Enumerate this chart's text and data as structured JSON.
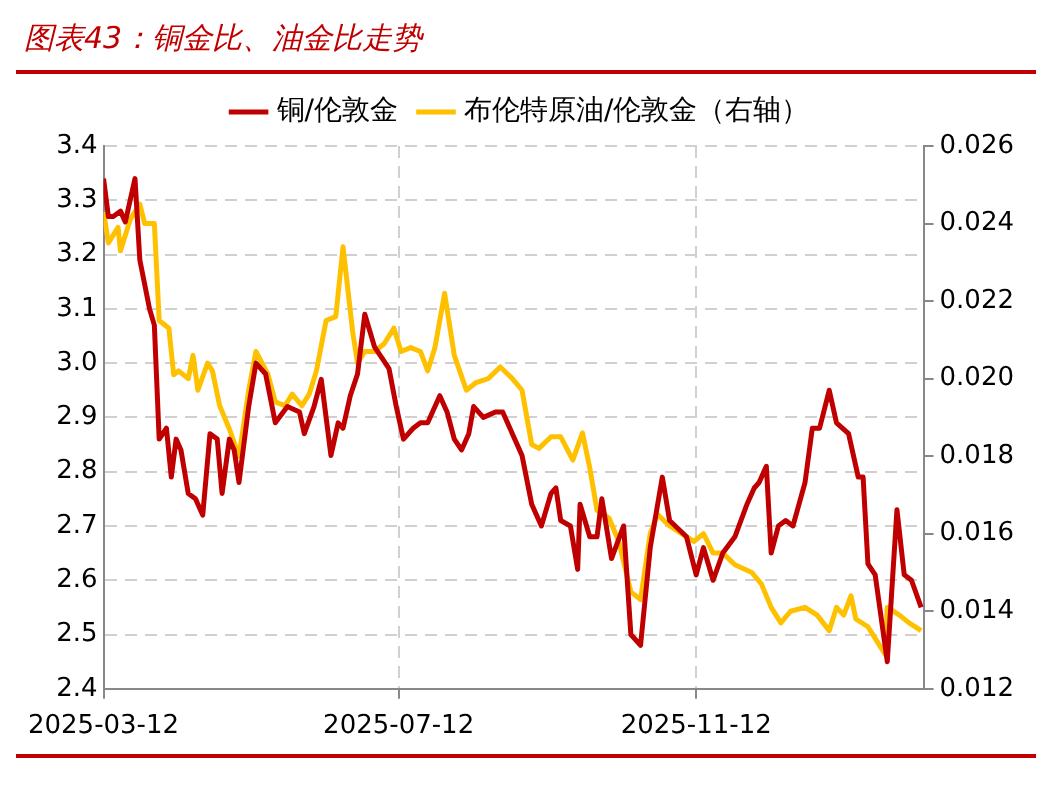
{
  "chart_data": {
    "type": "line",
    "title": "图表43：铜金比、油金比走势",
    "xlim": [
      "2025-03-12",
      "2026-02-14"
    ],
    "xticks": [
      "2025-03-12",
      "2025-07-12",
      "2025-11-12"
    ],
    "ylim": [
      2.4,
      3.4
    ],
    "yticks": [
      2.4,
      2.5,
      2.6,
      2.7,
      2.8,
      2.9,
      {
        "value": 3,
        "label": "3.0"
      },
      3.1,
      3.2,
      3.3,
      3.4
    ],
    "y2lim": [
      0.012,
      0.026
    ],
    "y2ticks": [
      {
        "value": 0.012,
        "label": "0.012"
      },
      {
        "value": 0.014,
        "label": "0.014"
      },
      {
        "value": 0.016,
        "label": "0.016"
      },
      {
        "value": 0.018,
        "label": "0.018"
      },
      {
        "value": 0.02,
        "label": "0.020"
      },
      {
        "value": 0.022,
        "label": "0.022"
      },
      {
        "value": 0.024,
        "label": "0.024"
      },
      {
        "value": 0.026,
        "label": "0.026"
      }
    ],
    "grid": true,
    "legend": "top",
    "line_style": "solid",
    "marker": "none",
    "series": [
      {
        "name": "铜/伦敦金",
        "color": "#c00000",
        "x": [
          "2025-03-12",
          "2025-03-14",
          "2025-03-16",
          "2025-03-19",
          "2025-03-21",
          "2025-03-25",
          "2025-03-27",
          "2025-03-31",
          "2025-04-02",
          "2025-04-04",
          "2025-04-07",
          "2025-04-09",
          "2025-04-11",
          "2025-04-13",
          "2025-04-16",
          "2025-04-19",
          "2025-04-22",
          "2025-04-25",
          "2025-04-28",
          "2025-04-30",
          "2025-05-03",
          "2025-05-05",
          "2025-05-07",
          "2025-05-11",
          "2025-05-14",
          "2025-05-18",
          "2025-05-22",
          "2025-05-27",
          "2025-06-01",
          "2025-06-03",
          "2025-06-07",
          "2025-06-10",
          "2025-06-14",
          "2025-06-17",
          "2025-06-19",
          "2025-06-22",
          "2025-06-25",
          "2025-06-28",
          "2025-07-02",
          "2025-07-05",
          "2025-07-08",
          "2025-07-11",
          "2025-07-14",
          "2025-07-18",
          "2025-07-21",
          "2025-07-24",
          "2025-07-29",
          "2025-08-01",
          "2025-08-04",
          "2025-08-07",
          "2025-08-10",
          "2025-08-12",
          "2025-08-16",
          "2025-08-21",
          "2025-08-24",
          "2025-08-28",
          "2025-09-01",
          "2025-09-05",
          "2025-09-09",
          "2025-09-13",
          "2025-09-15",
          "2025-09-17",
          "2025-09-21",
          "2025-09-24",
          "2025-09-25",
          "2025-09-29",
          "2025-10-02",
          "2025-10-04",
          "2025-10-08",
          "2025-10-13",
          "2025-10-16",
          "2025-10-20",
          "2025-10-24",
          "2025-10-29",
          "2025-11-01",
          "2025-11-08",
          "2025-11-12",
          "2025-11-15",
          "2025-11-19",
          "2025-11-23",
          "2025-11-28",
          "2025-12-03",
          "2025-12-06",
          "2025-12-08",
          "2025-12-11",
          "2025-12-13",
          "2025-12-16",
          "2025-12-19",
          "2025-12-22",
          "2025-12-27",
          "2025-12-30",
          "2026-01-02",
          "2026-01-06",
          "2026-01-09",
          "2026-01-14",
          "2026-01-18",
          "2026-01-20",
          "2026-01-22",
          "2026-01-25",
          "2026-01-30",
          "2026-02-03",
          "2026-02-06",
          "2026-02-09",
          "2026-02-13"
        ],
        "values": [
          3.34,
          3.27,
          3.27,
          3.28,
          3.26,
          3.34,
          3.19,
          3.1,
          3.07,
          2.86,
          2.88,
          2.79,
          2.86,
          2.84,
          2.76,
          2.75,
          2.72,
          2.87,
          2.86,
          2.76,
          2.86,
          2.84,
          2.78,
          2.92,
          3.0,
          2.98,
          2.89,
          2.92,
          2.91,
          2.87,
          2.92,
          2.97,
          2.83,
          2.89,
          2.88,
          2.94,
          2.98,
          3.09,
          3.03,
          3.01,
          2.99,
          2.92,
          2.86,
          2.88,
          2.89,
          2.89,
          2.94,
          2.91,
          2.86,
          2.84,
          2.87,
          2.92,
          2.9,
          2.91,
          2.91,
          2.87,
          2.83,
          2.74,
          2.7,
          2.76,
          2.77,
          2.71,
          2.7,
          2.62,
          2.74,
          2.68,
          2.68,
          2.75,
          2.64,
          2.7,
          2.5,
          2.48,
          2.66,
          2.79,
          2.71,
          2.68,
          2.61,
          2.66,
          2.6,
          2.65,
          2.68,
          2.74,
          2.77,
          2.78,
          2.81,
          2.65,
          2.7,
          2.71,
          2.7,
          2.78,
          2.88,
          2.88,
          2.95,
          2.89,
          2.87,
          2.79,
          2.79,
          2.63,
          2.61,
          2.45,
          2.73,
          2.61,
          2.6,
          2.55
        ]
      },
      {
        "name": "布伦特原油/伦敦金（右轴）",
        "color": "#ffc000",
        "axis": "y2",
        "x": [
          "2025-03-12",
          "2025-03-14",
          "2025-03-18",
          "2025-03-19",
          "2025-03-23",
          "2025-03-27",
          "2025-03-29",
          "2025-04-02",
          "2025-04-04",
          "2025-04-08",
          "2025-04-10",
          "2025-04-12",
          "2025-04-16",
          "2025-04-18",
          "2025-04-20",
          "2025-04-24",
          "2025-04-26",
          "2025-04-29",
          "2025-05-03",
          "2025-05-07",
          "2025-05-11",
          "2025-05-14",
          "2025-05-19",
          "2025-05-22",
          "2025-05-26",
          "2025-05-29",
          "2025-06-02",
          "2025-06-05",
          "2025-06-08",
          "2025-06-12",
          "2025-06-16",
          "2025-06-19",
          "2025-06-23",
          "2025-06-25",
          "2025-06-28",
          "2025-07-02",
          "2025-07-06",
          "2025-07-10",
          "2025-07-13",
          "2025-07-17",
          "2025-07-21",
          "2025-07-24",
          "2025-07-27",
          "2025-07-31",
          "2025-08-04",
          "2025-08-09",
          "2025-08-13",
          "2025-08-18",
          "2025-08-23",
          "2025-08-28",
          "2025-09-01",
          "2025-09-05",
          "2025-09-08",
          "2025-09-13",
          "2025-09-17",
          "2025-09-22",
          "2025-09-26",
          "2025-09-29",
          "2025-10-02",
          "2025-10-07",
          "2025-10-11",
          "2025-10-16",
          "2025-10-20",
          "2025-10-24",
          "2025-10-27",
          "2025-11-01",
          "2025-11-06",
          "2025-11-11",
          "2025-11-15",
          "2025-11-19",
          "2025-11-23",
          "2025-11-28",
          "2025-12-05",
          "2025-12-09",
          "2025-12-13",
          "2025-12-17",
          "2025-12-21",
          "2025-12-27",
          "2026-01-01",
          "2026-01-06",
          "2026-01-09",
          "2026-01-12",
          "2026-01-15",
          "2026-01-17",
          "2026-01-22",
          "2026-01-25",
          "2026-01-29",
          "2026-01-30",
          "2026-02-04",
          "2026-02-08",
          "2026-02-13"
        ],
        "values": [
          0.0243,
          0.0235,
          0.0239,
          0.0233,
          0.0241,
          0.0245,
          0.024,
          0.024,
          0.0215,
          0.0213,
          0.0201,
          0.0202,
          0.02,
          0.0206,
          0.0197,
          0.0204,
          0.0202,
          0.0193,
          0.0187,
          0.018,
          0.0197,
          0.0207,
          0.0201,
          0.0194,
          0.0193,
          0.0196,
          0.0193,
          0.0196,
          0.0202,
          0.0215,
          0.0216,
          0.0234,
          0.0212,
          0.0204,
          0.0207,
          0.0207,
          0.0209,
          0.0213,
          0.0207,
          0.0208,
          0.0207,
          0.0202,
          0.0208,
          0.0222,
          0.0206,
          0.0197,
          0.0199,
          0.02,
          0.0203,
          0.02,
          0.0197,
          0.0183,
          0.0182,
          0.0185,
          0.0185,
          0.0179,
          0.0186,
          0.0177,
          0.0166,
          0.0164,
          0.0158,
          0.0145,
          0.0143,
          0.016,
          0.0165,
          0.0162,
          0.016,
          0.0158,
          0.016,
          0.0155,
          0.0155,
          0.0152,
          0.015,
          0.0147,
          0.0141,
          0.0137,
          0.014,
          0.0141,
          0.0139,
          0.0135,
          0.0141,
          0.0139,
          0.0144,
          0.0138,
          0.0136,
          0.0133,
          0.0129,
          0.0141,
          0.0139,
          0.0137,
          0.0135
        ]
      }
    ]
  }
}
